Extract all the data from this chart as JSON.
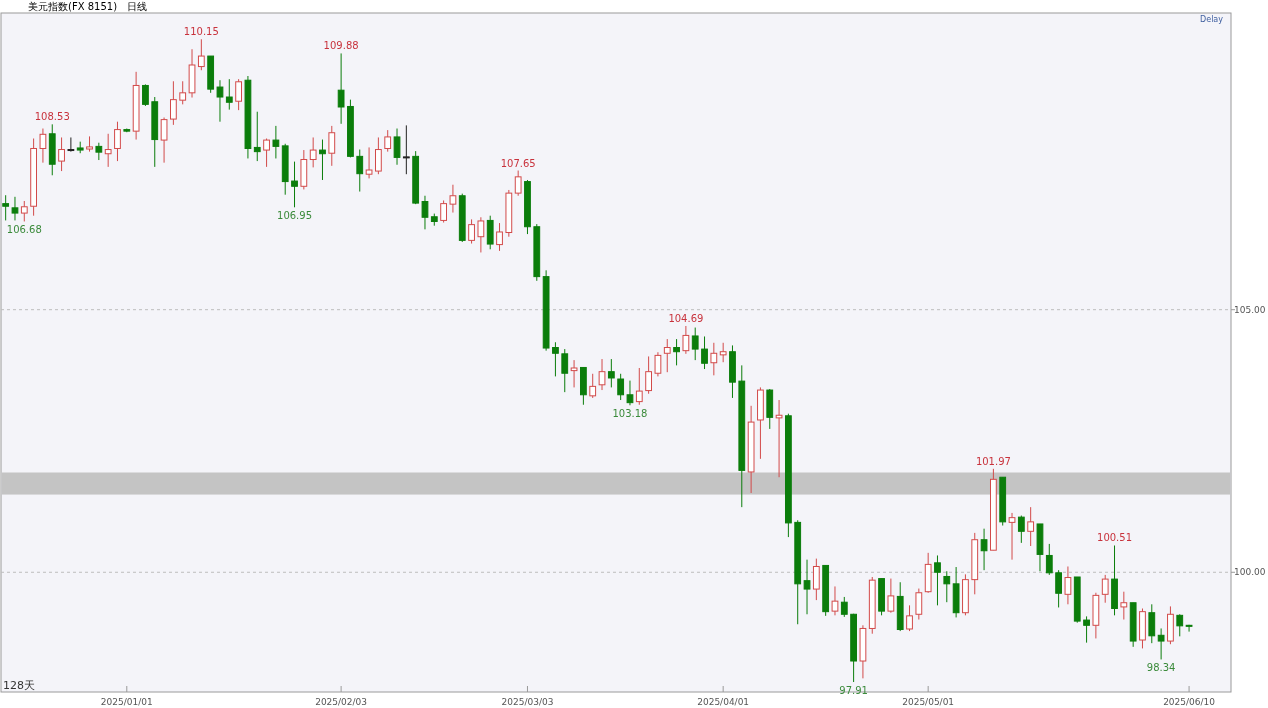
{
  "chart_data": {
    "type": "candlestick",
    "title": "美元指数(FX 8151)",
    "subtitle": "日线",
    "categories": [
      null,
      null,
      null,
      null,
      null,
      null,
      null,
      null,
      null,
      null,
      null,
      null,
      null,
      "2025/01/01",
      null,
      null,
      null,
      null,
      null,
      null,
      null,
      null,
      null,
      null,
      null,
      null,
      null,
      null,
      null,
      null,
      null,
      null,
      null,
      null,
      null,
      null,
      "2025/02/03",
      null,
      null,
      null,
      null,
      null,
      null,
      null,
      null,
      null,
      null,
      null,
      null,
      null,
      null,
      null,
      null,
      null,
      null,
      null,
      "2025/03/03",
      null,
      null,
      null,
      null,
      null,
      null,
      null,
      null,
      null,
      null,
      null,
      null,
      null,
      null,
      null,
      null,
      null,
      null,
      null,
      null,
      "2025/04/01",
      null,
      null,
      null,
      null,
      null,
      null,
      null,
      null,
      null,
      null,
      null,
      null,
      null,
      null,
      null,
      null,
      null,
      null,
      null,
      null,
      null,
      "2025/05/01",
      null,
      null,
      null,
      null,
      null,
      null,
      null,
      null,
      null,
      null,
      null,
      null,
      null,
      null,
      null,
      null,
      null,
      null,
      null,
      null,
      null,
      null,
      null,
      null,
      null,
      null,
      null,
      "2025/06/10"
    ],
    "ohlc": [
      [
        107.02,
        107.18,
        106.7,
        106.97
      ],
      [
        106.94,
        107.15,
        106.7,
        106.84
      ],
      [
        106.84,
        107.07,
        106.68,
        106.96
      ],
      [
        106.97,
        108.26,
        106.79,
        108.07
      ],
      [
        108.07,
        108.45,
        107.8,
        108.34
      ],
      [
        108.35,
        108.53,
        107.56,
        107.77
      ],
      [
        107.83,
        108.28,
        107.64,
        108.05
      ],
      [
        108.05,
        108.28,
        108.01,
        108.05
      ],
      [
        108.08,
        108.2,
        107.98,
        108.04
      ],
      [
        108.06,
        108.3,
        108.01,
        108.1
      ],
      [
        108.11,
        108.18,
        107.85,
        108.0
      ],
      [
        107.97,
        108.35,
        107.72,
        108.05
      ],
      [
        108.07,
        108.58,
        107.83,
        108.43
      ],
      [
        108.43,
        108.45,
        108.38,
        108.4
      ],
      [
        108.4,
        109.53,
        108.24,
        109.27
      ],
      [
        109.27,
        109.29,
        108.88,
        108.91
      ],
      [
        108.96,
        109.05,
        107.72,
        108.24
      ],
      [
        108.23,
        108.66,
        107.8,
        108.62
      ],
      [
        108.63,
        109.35,
        108.52,
        109.0
      ],
      [
        108.99,
        109.35,
        108.91,
        109.13
      ],
      [
        109.13,
        109.96,
        109.04,
        109.66
      ],
      [
        109.63,
        110.15,
        109.56,
        109.83
      ],
      [
        109.83,
        109.83,
        109.13,
        109.2
      ],
      [
        109.24,
        109.37,
        108.58,
        109.05
      ],
      [
        109.05,
        109.39,
        108.81,
        108.95
      ],
      [
        108.97,
        109.39,
        108.8,
        109.34
      ],
      [
        109.37,
        109.45,
        107.88,
        108.07
      ],
      [
        108.09,
        108.77,
        107.83,
        108.01
      ],
      [
        108.04,
        108.26,
        107.72,
        108.23
      ],
      [
        108.23,
        108.5,
        107.88,
        108.11
      ],
      [
        108.12,
        108.16,
        107.19,
        107.44
      ],
      [
        107.45,
        107.82,
        106.95,
        107.35
      ],
      [
        107.35,
        108.04,
        107.29,
        107.86
      ],
      [
        107.86,
        108.28,
        107.71,
        108.04
      ],
      [
        108.04,
        108.24,
        107.47,
        107.97
      ],
      [
        107.98,
        108.5,
        107.74,
        108.37
      ],
      [
        109.18,
        109.88,
        108.54,
        108.86
      ],
      [
        108.87,
        109.0,
        107.9,
        107.92
      ],
      [
        107.92,
        108.05,
        107.25,
        107.59
      ],
      [
        107.58,
        108.09,
        107.5,
        107.66
      ],
      [
        107.64,
        108.28,
        107.58,
        108.05
      ],
      [
        108.07,
        108.42,
        108.01,
        108.29
      ],
      [
        108.29,
        108.45,
        107.76,
        107.9
      ],
      [
        107.91,
        108.51,
        107.58,
        107.91
      ],
      [
        107.92,
        108.02,
        107.01,
        107.03
      ],
      [
        107.06,
        107.17,
        106.53,
        106.76
      ],
      [
        106.77,
        106.83,
        106.6,
        106.68
      ],
      [
        106.7,
        107.08,
        106.66,
        107.02
      ],
      [
        107.01,
        107.38,
        106.85,
        107.17
      ],
      [
        107.17,
        107.21,
        106.29,
        106.32
      ],
      [
        106.32,
        106.72,
        106.26,
        106.62
      ],
      [
        106.39,
        106.76,
        106.09,
        106.69
      ],
      [
        106.7,
        106.79,
        106.15,
        106.25
      ],
      [
        106.24,
        106.65,
        106.12,
        106.48
      ],
      [
        106.47,
        107.28,
        106.39,
        107.22
      ],
      [
        107.22,
        107.65,
        107.17,
        107.53
      ],
      [
        107.44,
        107.47,
        106.44,
        106.58
      ],
      [
        106.58,
        106.63,
        105.55,
        105.63
      ],
      [
        105.63,
        105.75,
        104.22,
        104.27
      ],
      [
        104.28,
        104.38,
        103.73,
        104.17
      ],
      [
        104.16,
        104.25,
        103.43,
        103.79
      ],
      [
        103.84,
        104.04,
        103.52,
        103.89
      ],
      [
        103.9,
        103.9,
        103.19,
        103.38
      ],
      [
        103.36,
        103.78,
        103.32,
        103.54
      ],
      [
        103.57,
        104.06,
        103.47,
        103.82
      ],
      [
        103.82,
        104.06,
        103.52,
        103.7
      ],
      [
        103.68,
        103.78,
        103.28,
        103.38
      ],
      [
        103.38,
        103.65,
        103.18,
        103.23
      ],
      [
        103.25,
        103.89,
        103.19,
        103.45
      ],
      [
        103.46,
        104.11,
        103.4,
        103.82
      ],
      [
        103.79,
        104.19,
        103.73,
        104.13
      ],
      [
        104.17,
        104.44,
        103.81,
        104.28
      ],
      [
        104.28,
        104.44,
        103.94,
        104.2
      ],
      [
        104.22,
        104.69,
        104.16,
        104.51
      ],
      [
        104.5,
        104.66,
        104.04,
        104.25
      ],
      [
        104.25,
        104.49,
        103.87,
        103.98
      ],
      [
        103.99,
        104.37,
        103.75,
        104.17
      ],
      [
        104.14,
        104.37,
        104.0,
        104.2
      ],
      [
        104.2,
        104.32,
        103.32,
        103.62
      ],
      [
        103.64,
        103.94,
        101.24,
        101.94
      ],
      [
        101.91,
        103.17,
        101.51,
        102.86
      ],
      [
        102.9,
        103.52,
        102.16,
        103.47
      ],
      [
        103.47,
        103.49,
        102.73,
        102.95
      ],
      [
        102.94,
        103.28,
        101.81,
        102.99
      ],
      [
        102.98,
        103.02,
        100.67,
        100.94
      ],
      [
        100.95,
        100.99,
        99.01,
        99.78
      ],
      [
        99.84,
        100.24,
        99.2,
        99.68
      ],
      [
        99.68,
        100.26,
        99.47,
        100.11
      ],
      [
        100.13,
        100.13,
        99.17,
        99.25
      ],
      [
        99.26,
        99.73,
        99.18,
        99.45
      ],
      [
        99.43,
        99.53,
        99.15,
        99.2
      ],
      [
        99.2,
        99.21,
        97.91,
        98.31
      ],
      [
        98.31,
        98.99,
        97.98,
        98.93
      ],
      [
        98.93,
        99.91,
        98.83,
        99.85
      ],
      [
        99.88,
        99.88,
        99.18,
        99.26
      ],
      [
        99.26,
        99.88,
        99.23,
        99.55
      ],
      [
        99.54,
        99.81,
        98.88,
        98.91
      ],
      [
        98.92,
        99.37,
        98.88,
        99.17
      ],
      [
        99.2,
        99.69,
        99.1,
        99.61
      ],
      [
        99.63,
        100.37,
        99.61,
        100.15
      ],
      [
        100.18,
        100.32,
        99.37,
        100.0
      ],
      [
        99.92,
        100.02,
        99.43,
        99.78
      ],
      [
        99.78,
        100.1,
        99.14,
        99.23
      ],
      [
        99.23,
        99.96,
        99.18,
        99.86
      ],
      [
        99.86,
        100.75,
        99.58,
        100.62
      ],
      [
        100.62,
        100.83,
        100.04,
        100.41
      ],
      [
        100.42,
        101.97,
        100.42,
        101.77
      ],
      [
        101.81,
        101.81,
        100.89,
        100.96
      ],
      [
        100.95,
        101.13,
        100.24,
        101.04
      ],
      [
        101.05,
        101.08,
        100.56,
        100.78
      ],
      [
        100.78,
        101.24,
        100.5,
        100.96
      ],
      [
        100.92,
        100.92,
        100.02,
        100.34
      ],
      [
        100.32,
        100.54,
        99.95,
        99.99
      ],
      [
        99.99,
        100.04,
        99.33,
        99.6
      ],
      [
        99.58,
        100.11,
        99.39,
        99.9
      ],
      [
        99.91,
        99.91,
        99.04,
        99.07
      ],
      [
        99.09,
        99.16,
        98.66,
        98.99
      ],
      [
        98.99,
        99.61,
        98.74,
        99.56
      ],
      [
        99.58,
        99.95,
        99.42,
        99.87
      ],
      [
        99.87,
        100.51,
        99.18,
        99.31
      ],
      [
        99.34,
        99.63,
        99.1,
        99.42
      ],
      [
        99.42,
        99.42,
        98.58,
        98.69
      ],
      [
        98.71,
        99.31,
        98.55,
        99.25
      ],
      [
        99.23,
        99.39,
        98.65,
        98.79
      ],
      [
        98.8,
        98.93,
        98.34,
        98.69
      ],
      [
        98.69,
        99.35,
        98.63,
        99.2
      ],
      [
        99.18,
        99.2,
        98.78,
        98.98
      ],
      [
        98.99,
        99.0,
        98.87,
        98.97
      ]
    ],
    "colors": [
      "#0b7d0b",
      "#0b7d0b",
      "#d24a4a",
      "#d24a4a",
      "#d24a4a",
      "#0b7d0b",
      "#d24a4a",
      "#222222",
      "#0b7d0b",
      "#d24a4a",
      "#0b7d0b",
      "#d24a4a",
      "#d24a4a",
      "#0b7d0b",
      "#d24a4a",
      "#0b7d0b",
      "#0b7d0b",
      "#d24a4a",
      "#d24a4a",
      "#d24a4a",
      "#d24a4a",
      "#d24a4a",
      "#0b7d0b",
      "#0b7d0b",
      "#0b7d0b",
      "#d24a4a",
      "#0b7d0b",
      "#0b7d0b",
      "#d24a4a",
      "#0b7d0b",
      "#0b7d0b",
      "#0b7d0b",
      "#d24a4a",
      "#d24a4a",
      "#0b7d0b",
      "#d24a4a",
      "#0b7d0b",
      "#0b7d0b",
      "#0b7d0b",
      "#d24a4a",
      "#d24a4a",
      "#d24a4a",
      "#0b7d0b",
      "#222222",
      "#0b7d0b",
      "#0b7d0b",
      "#0b7d0b",
      "#d24a4a",
      "#d24a4a",
      "#0b7d0b",
      "#d24a4a",
      "#d24a4a",
      "#0b7d0b",
      "#d24a4a",
      "#d24a4a",
      "#d24a4a",
      "#0b7d0b",
      "#0b7d0b",
      "#0b7d0b",
      "#0b7d0b",
      "#0b7d0b",
      "#d24a4a",
      "#0b7d0b",
      "#d24a4a",
      "#d24a4a",
      "#0b7d0b",
      "#0b7d0b",
      "#0b7d0b",
      "#d24a4a",
      "#d24a4a",
      "#d24a4a",
      "#d24a4a",
      "#0b7d0b",
      "#d24a4a",
      "#0b7d0b",
      "#0b7d0b",
      "#d24a4a",
      "#d24a4a",
      "#0b7d0b",
      "#0b7d0b",
      "#d24a4a",
      "#d24a4a",
      "#0b7d0b",
      "#d24a4a",
      "#0b7d0b",
      "#0b7d0b",
      "#0b7d0b",
      "#d24a4a",
      "#0b7d0b",
      "#d24a4a",
      "#0b7d0b",
      "#0b7d0b",
      "#d24a4a",
      "#d24a4a",
      "#0b7d0b",
      "#d24a4a",
      "#0b7d0b",
      "#d24a4a",
      "#d24a4a",
      "#d24a4a",
      "#0b7d0b",
      "#0b7d0b",
      "#0b7d0b",
      "#d24a4a",
      "#d24a4a",
      "#0b7d0b",
      "#d24a4a",
      "#0b7d0b",
      "#d24a4a",
      "#0b7d0b",
      "#d24a4a",
      "#0b7d0b",
      "#0b7d0b",
      "#0b7d0b",
      "#d24a4a",
      "#0b7d0b",
      "#0b7d0b",
      "#d24a4a",
      "#d24a4a",
      "#0b7d0b",
      "#d24a4a",
      "#0b7d0b",
      "#d24a4a",
      "#0b7d0b",
      "#0b7d0b",
      "#d24a4a",
      "#0b7d0b",
      "#0b7d0b"
    ],
    "ylim": [
      97.72,
      110.65
    ],
    "yticks": [
      {
        "value": 105,
        "label": "105.00"
      },
      {
        "value": 100,
        "label": "100.00"
      }
    ],
    "grid": "y",
    "bands": [
      {
        "axis": "y",
        "from": 101.48,
        "to": 101.9,
        "color": "#c4c4c4"
      }
    ],
    "annotations": [
      "Delay",
      "128天",
      {
        "text": "110.15",
        "y": 110.15
      },
      {
        "text": "108.53",
        "y": 108.53
      },
      {
        "text": "106.68",
        "y": 106.68
      },
      {
        "text": "106.95",
        "y": 106.95
      },
      {
        "text": "109.88",
        "y": 109.88
      },
      {
        "text": "107.65",
        "y": 107.65
      },
      {
        "text": "103.18",
        "y": 103.18
      },
      {
        "text": "104.69",
        "y": 104.69
      },
      {
        "text": "97.91",
        "y": 97.91
      },
      {
        "text": "101.97",
        "y": 101.97
      },
      {
        "text": "100.51",
        "y": 100.51
      },
      {
        "text": "98.34",
        "y": 98.34
      }
    ]
  }
}
